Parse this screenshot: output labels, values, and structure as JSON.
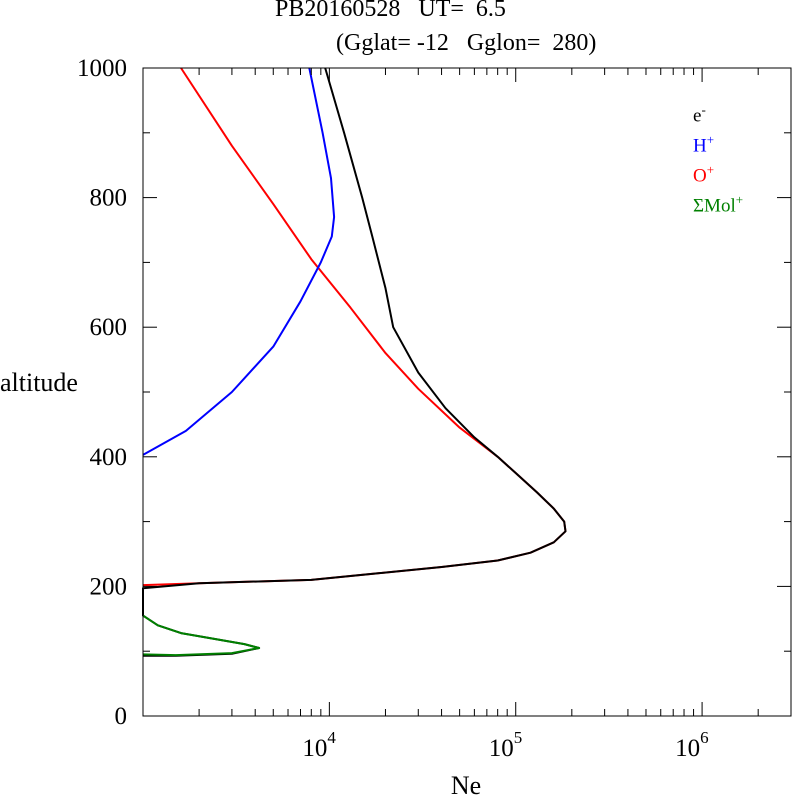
{
  "chart_data": {
    "type": "line",
    "title_line1": "PB20160528   UT=  6.5",
    "title_line2": "(Gglat= -12   Gglon=  280)",
    "xlabel": "Ne",
    "ylabel": "altitude",
    "x_scale": "log",
    "xlim": [
      1000,
      3000000
    ],
    "ylim": [
      0,
      1000
    ],
    "x_tick_labels": [
      {
        "base": "10",
        "exp": "4",
        "value": 10000
      },
      {
        "base": "10",
        "exp": "5",
        "value": 100000
      },
      {
        "base": "10",
        "exp": "6",
        "value": 1000000
      }
    ],
    "y_ticks": [
      0,
      200,
      400,
      600,
      800,
      1000
    ],
    "legend": {
      "placement": "top-right",
      "items": [
        {
          "text": "e",
          "sup": "-",
          "color": "#000000"
        },
        {
          "text": "H",
          "sup": "+",
          "color": "#0000ff"
        },
        {
          "text": "O",
          "sup": "+",
          "color": "#ff0000"
        },
        {
          "text": "ΣMol",
          "sup": "+",
          "color": "#008000"
        }
      ]
    },
    "series": [
      {
        "color": "#ff0000",
        "points": [
          [
            1000,
            202
          ],
          [
            2000,
            205
          ],
          [
            8000,
            210
          ],
          [
            18000,
            220
          ],
          [
            40000,
            230
          ],
          [
            80000,
            240
          ],
          [
            120000,
            252
          ],
          [
            160000,
            268
          ],
          [
            185000,
            285
          ],
          [
            182000,
            300
          ],
          [
            160000,
            320
          ],
          [
            130000,
            345
          ],
          [
            100000,
            375
          ],
          [
            80000,
            400
          ],
          [
            50000,
            445
          ],
          [
            30000,
            505
          ],
          [
            20000,
            560
          ],
          [
            13000,
            630
          ],
          [
            8000,
            705
          ],
          [
            5000,
            790
          ],
          [
            3000,
            880
          ],
          [
            1600,
            1000
          ]
        ]
      },
      {
        "color": "#0000ff",
        "points": [
          [
            1000,
            403
          ],
          [
            1700,
            440
          ],
          [
            3000,
            500
          ],
          [
            5000,
            570
          ],
          [
            7000,
            640
          ],
          [
            9000,
            700
          ],
          [
            10300,
            740
          ],
          [
            10600,
            770
          ],
          [
            10200,
            830
          ],
          [
            9200,
            900
          ],
          [
            7800,
            1000
          ]
        ]
      },
      {
        "color": "#000000",
        "points": [
          [
            1000,
            93
          ],
          [
            1500,
            93
          ],
          [
            3000,
            96
          ],
          [
            4200,
            105
          ],
          [
            3500,
            111
          ],
          [
            1600,
            128
          ],
          [
            1200,
            140
          ],
          [
            1000,
            155
          ],
          [
            1000,
            197
          ],
          [
            2000,
            205
          ],
          [
            8000,
            210
          ],
          [
            18000,
            220
          ],
          [
            40000,
            230
          ],
          [
            80000,
            240
          ],
          [
            120000,
            252
          ],
          [
            160000,
            268
          ],
          [
            185000,
            285
          ],
          [
            182000,
            300
          ],
          [
            160000,
            320
          ],
          [
            130000,
            345
          ],
          [
            100000,
            375
          ],
          [
            80000,
            400
          ],
          [
            60000,
            430
          ],
          [
            42000,
            475
          ],
          [
            30000,
            530
          ],
          [
            22000,
            600
          ],
          [
            20000,
            660
          ],
          [
            17000,
            740
          ],
          [
            15000,
            800
          ],
          [
            12000,
            900
          ],
          [
            9500,
            1000
          ]
        ]
      },
      {
        "color": "#008000",
        "points": [
          [
            1000,
            95
          ],
          [
            1500,
            94
          ],
          [
            3000,
            97
          ],
          [
            4200,
            105
          ],
          [
            3500,
            111
          ],
          [
            1600,
            128
          ],
          [
            1200,
            140
          ],
          [
            1000,
            155
          ]
        ]
      }
    ]
  }
}
